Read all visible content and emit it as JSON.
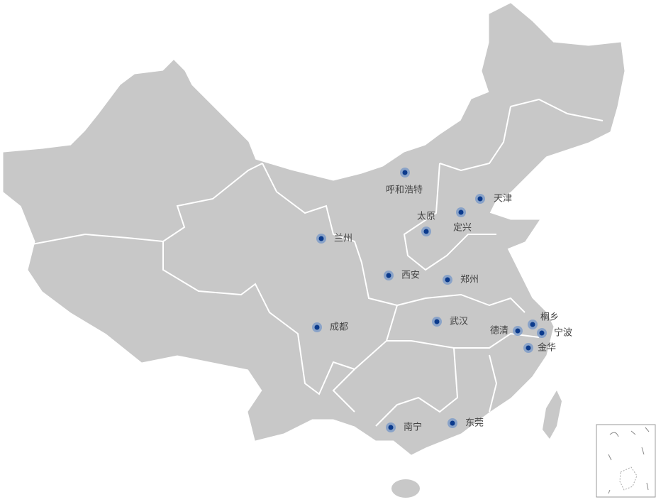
{
  "cities": [
    "呼和浩特",
    "天津",
    "定兴",
    "太原",
    "兰州",
    "西安",
    "郑州",
    "成都",
    "武汉",
    "德清",
    "桐乡",
    "宁波",
    "金华",
    "南宁",
    "东莞"
  ]
}
